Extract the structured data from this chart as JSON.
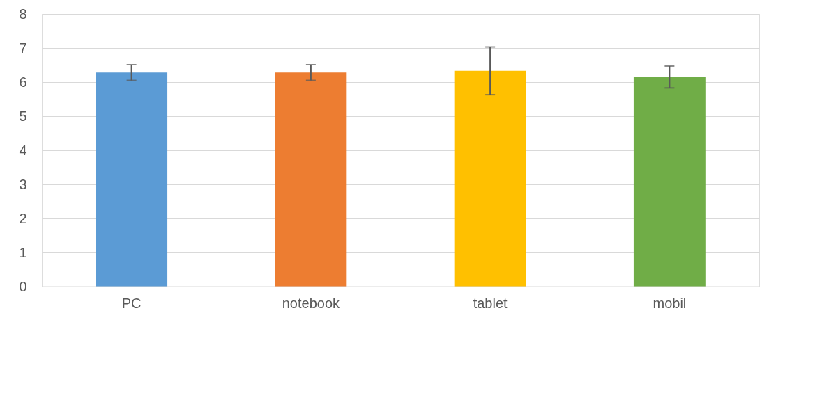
{
  "chart_data": {
    "type": "bar",
    "categories": [
      "PC",
      "notebook",
      "tablet",
      "mobil"
    ],
    "values": [
      6.28,
      6.28,
      6.33,
      6.15
    ],
    "colors": [
      "#5b9bd5",
      "#ed7d31",
      "#ffc000",
      "#70ad47"
    ],
    "errors": [
      0.23,
      0.23,
      0.7,
      0.32
    ],
    "ylim": [
      0,
      8
    ],
    "yticks": [
      0,
      1,
      2,
      3,
      4,
      5,
      6,
      7,
      8
    ],
    "grid": "y",
    "legend": false
  }
}
